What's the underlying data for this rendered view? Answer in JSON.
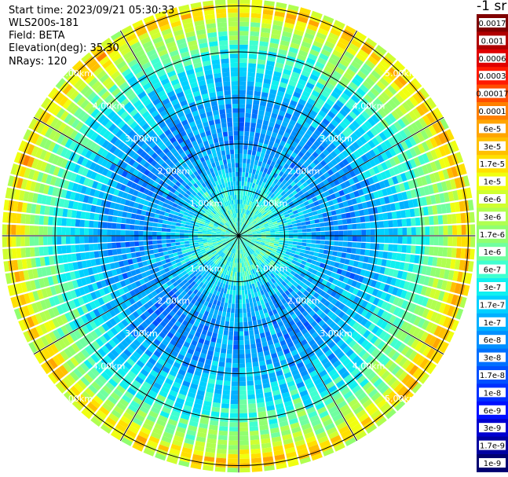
{
  "info": {
    "start_time": "Start time: 2023/09/21 05:30:33",
    "device": "WLS200s-181",
    "field": "Field: BETA",
    "elevation": "Elevation(deg): 35.30",
    "nrays": "NRays: 120"
  },
  "colorbar": {
    "unit": "-1 sr",
    "labels": [
      "0.0017",
      "0.001",
      "0.0006",
      "0.0003",
      "0.00017",
      "0.0001",
      "6e-5",
      "3e-5",
      "1.7e-5",
      "1e-5",
      "6e-6",
      "3e-6",
      "1.7e-6",
      "1e-6",
      "6e-7",
      "3e-7",
      "1.7e-7",
      "1e-7",
      "6e-8",
      "3e-8",
      "1.7e-8",
      "1e-8",
      "6e-9",
      "3e-9",
      "1.7e-9",
      "1e-9"
    ],
    "colors": [
      "#800000",
      "#b00000",
      "#e00000",
      "#ff1a00",
      "#ff4d00",
      "#ff8000",
      "#ffa500",
      "#ffc000",
      "#ffe000",
      "#f0ff10",
      "#d0ff30",
      "#b0ff50",
      "#90ff70",
      "#70ffa0",
      "#40ffd0",
      "#10f0f0",
      "#00d0ff",
      "#00b0ff",
      "#0090ff",
      "#0070ff",
      "#0050ff",
      "#0030ff",
      "#0010ff",
      "#0000d0",
      "#0000a0",
      "#000070"
    ]
  },
  "chart_data": {
    "type": "polar-ppi",
    "nrays": 120,
    "rings_km": [
      1,
      2,
      3,
      4,
      5
    ],
    "ring_labels": [
      "1.00km",
      "2.00km",
      "3.00km",
      "4.00km",
      "5.00km"
    ],
    "spokes_deg": [
      0,
      30,
      60,
      90,
      120,
      150,
      180,
      210,
      240,
      270,
      300,
      330
    ],
    "range_max_km": 5.15,
    "field": "BETA",
    "profile": [
      {
        "range_km": 0.0,
        "level": 14
      },
      {
        "range_km": 0.7,
        "level": 14
      },
      {
        "range_km": 1.5,
        "level": 17
      },
      {
        "range_km": 2.5,
        "level": 18
      },
      {
        "range_km": 3.4,
        "level": 16
      },
      {
        "range_km": 4.0,
        "level": 14
      },
      {
        "range_km": 4.6,
        "level": 11
      },
      {
        "range_km": 4.95,
        "level": 7
      },
      {
        "range_km": 5.1,
        "level": 10
      }
    ]
  }
}
